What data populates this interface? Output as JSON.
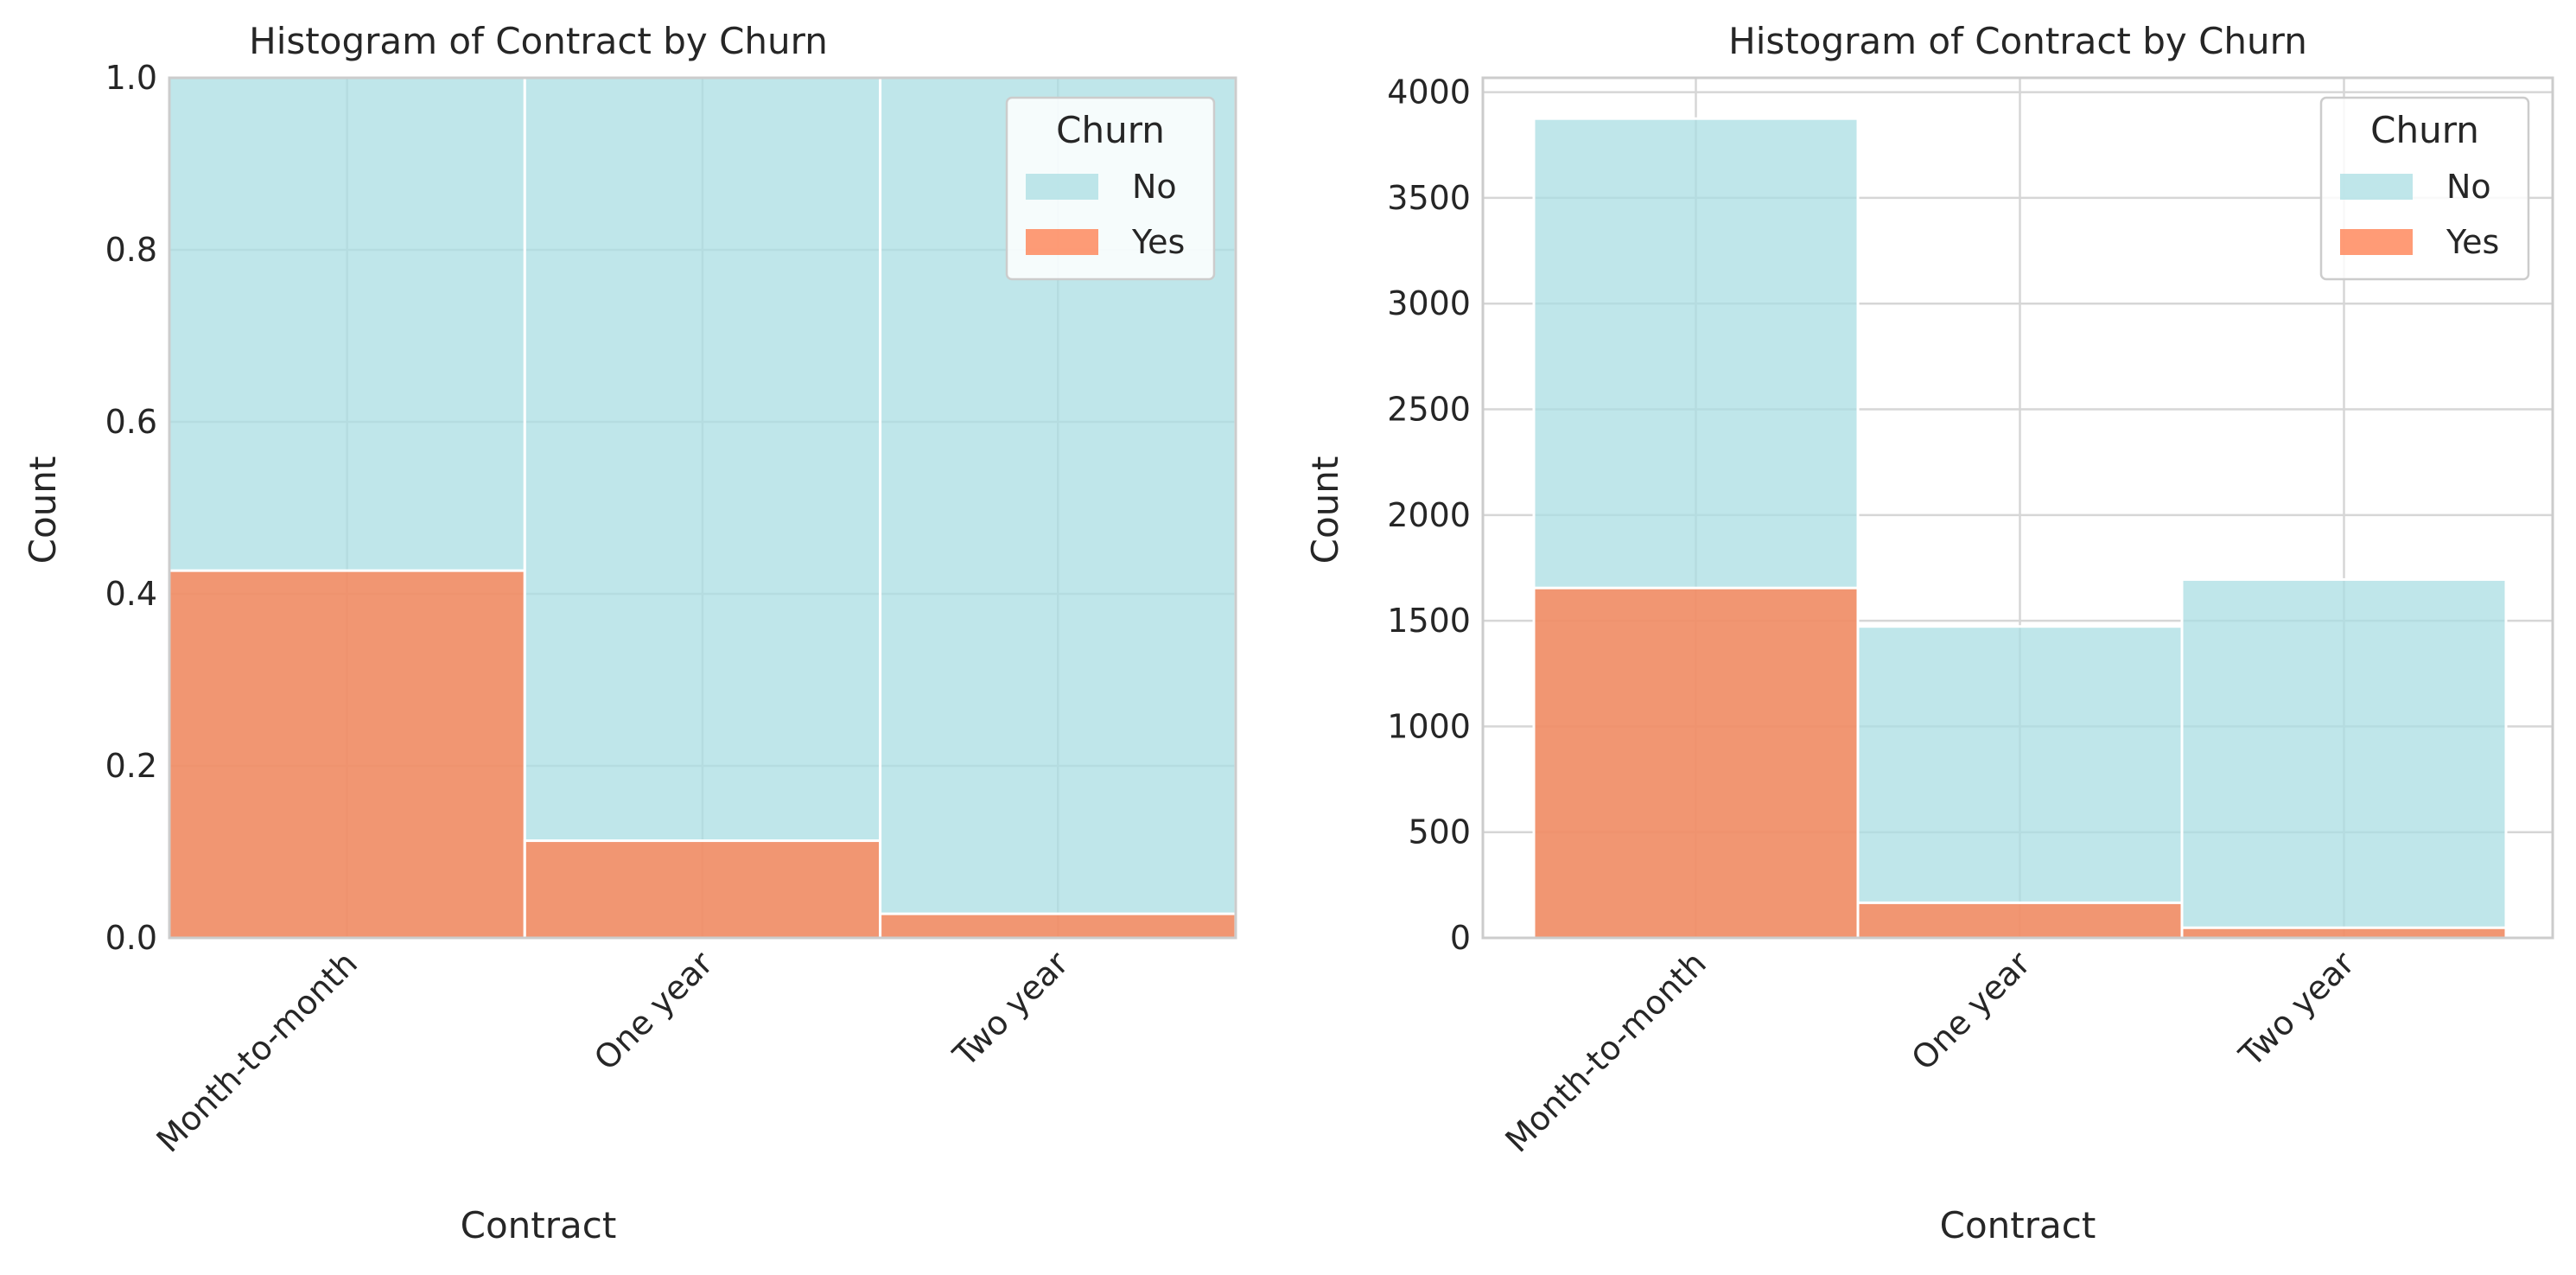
{
  "colors": {
    "No": "#a9dde3",
    "Yes": "#ff7f50"
  },
  "chart_data": [
    {
      "type": "bar",
      "stacked": true,
      "normalized": true,
      "title": "Histogram of Contract by Churn",
      "xlabel": "Contract",
      "ylabel": "Count",
      "categories": [
        "Month-to-month",
        "One year",
        "Two year"
      ],
      "series": [
        {
          "name": "No",
          "values": [
            0.573,
            0.887,
            0.972
          ]
        },
        {
          "name": "Yes",
          "values": [
            0.427,
            0.113,
            0.028
          ]
        }
      ],
      "ylim": [
        0,
        1.0
      ],
      "yticks": [
        "0.0",
        "0.2",
        "0.4",
        "0.6",
        "0.8",
        "1.0"
      ],
      "legend": {
        "title": "Churn",
        "position": "top-right"
      },
      "grid": true
    },
    {
      "type": "bar",
      "stacked": true,
      "normalized": false,
      "title": "Histogram of Contract by Churn",
      "xlabel": "Contract",
      "ylabel": "Count",
      "categories": [
        "Month-to-month",
        "One year",
        "Two year"
      ],
      "series": [
        {
          "name": "No",
          "values": [
            2220,
            1307,
            1647
          ]
        },
        {
          "name": "Yes",
          "values": [
            1655,
            166,
            48
          ]
        }
      ],
      "ylim": [
        0,
        4068
      ],
      "yticks": [
        "0",
        "500",
        "1000",
        "1500",
        "2000",
        "2500",
        "3000",
        "3500",
        "4000"
      ],
      "legend": {
        "title": "Churn",
        "position": "top-right"
      },
      "grid": true
    }
  ]
}
